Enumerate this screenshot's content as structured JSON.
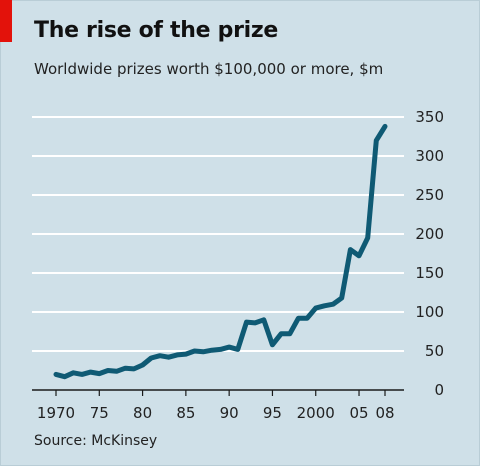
{
  "header": {
    "title": "The rise of the prize",
    "subtitle": "Worldwide prizes worth $100,000 or more, $m"
  },
  "footer": {
    "source": "Source: McKinsey"
  },
  "colors": {
    "background": "#cfe0e8",
    "line": "#0f5a74",
    "grid": "#ffffff",
    "accent": "#e3120b"
  },
  "chart_data": {
    "type": "line",
    "title": "The rise of the prize",
    "subtitle": "Worldwide prizes worth $100,000 or more, $m",
    "ylim": [
      0,
      350
    ],
    "xlim": [
      1970,
      2008
    ],
    "y_ticks": [
      "0",
      "50",
      "100",
      "150",
      "200",
      "250",
      "300",
      "350"
    ],
    "y_tick_values": [
      0,
      50,
      100,
      150,
      200,
      250,
      300,
      350
    ],
    "y_axis_position": "right",
    "x_ticks": [
      "1970",
      "75",
      "80",
      "85",
      "90",
      "95",
      "2000",
      "05",
      "08"
    ],
    "x_tick_values": [
      1970,
      1975,
      1980,
      1985,
      1990,
      1995,
      2000,
      2005,
      2008
    ],
    "grid": "horizontal",
    "series": [
      {
        "x": [
          1970,
          1971,
          1972,
          1973,
          1974,
          1975,
          1976,
          1977,
          1978,
          1979,
          1980,
          1981,
          1982,
          1983,
          1984,
          1985,
          1986,
          1987,
          1988,
          1989,
          1990,
          1991,
          1992,
          1993,
          1994,
          1995,
          1996,
          1997,
          1998,
          1999,
          2000,
          2001,
          2002,
          2003,
          2004,
          2005,
          2006,
          2007,
          2008
        ],
        "values": [
          20,
          17,
          22,
          20,
          23,
          21,
          25,
          24,
          28,
          27,
          32,
          41,
          44,
          42,
          45,
          46,
          50,
          49,
          51,
          52,
          55,
          52,
          87,
          86,
          90,
          58,
          72,
          72,
          92,
          92,
          105,
          108,
          110,
          118,
          180,
          172,
          195,
          320,
          338
        ]
      }
    ]
  }
}
